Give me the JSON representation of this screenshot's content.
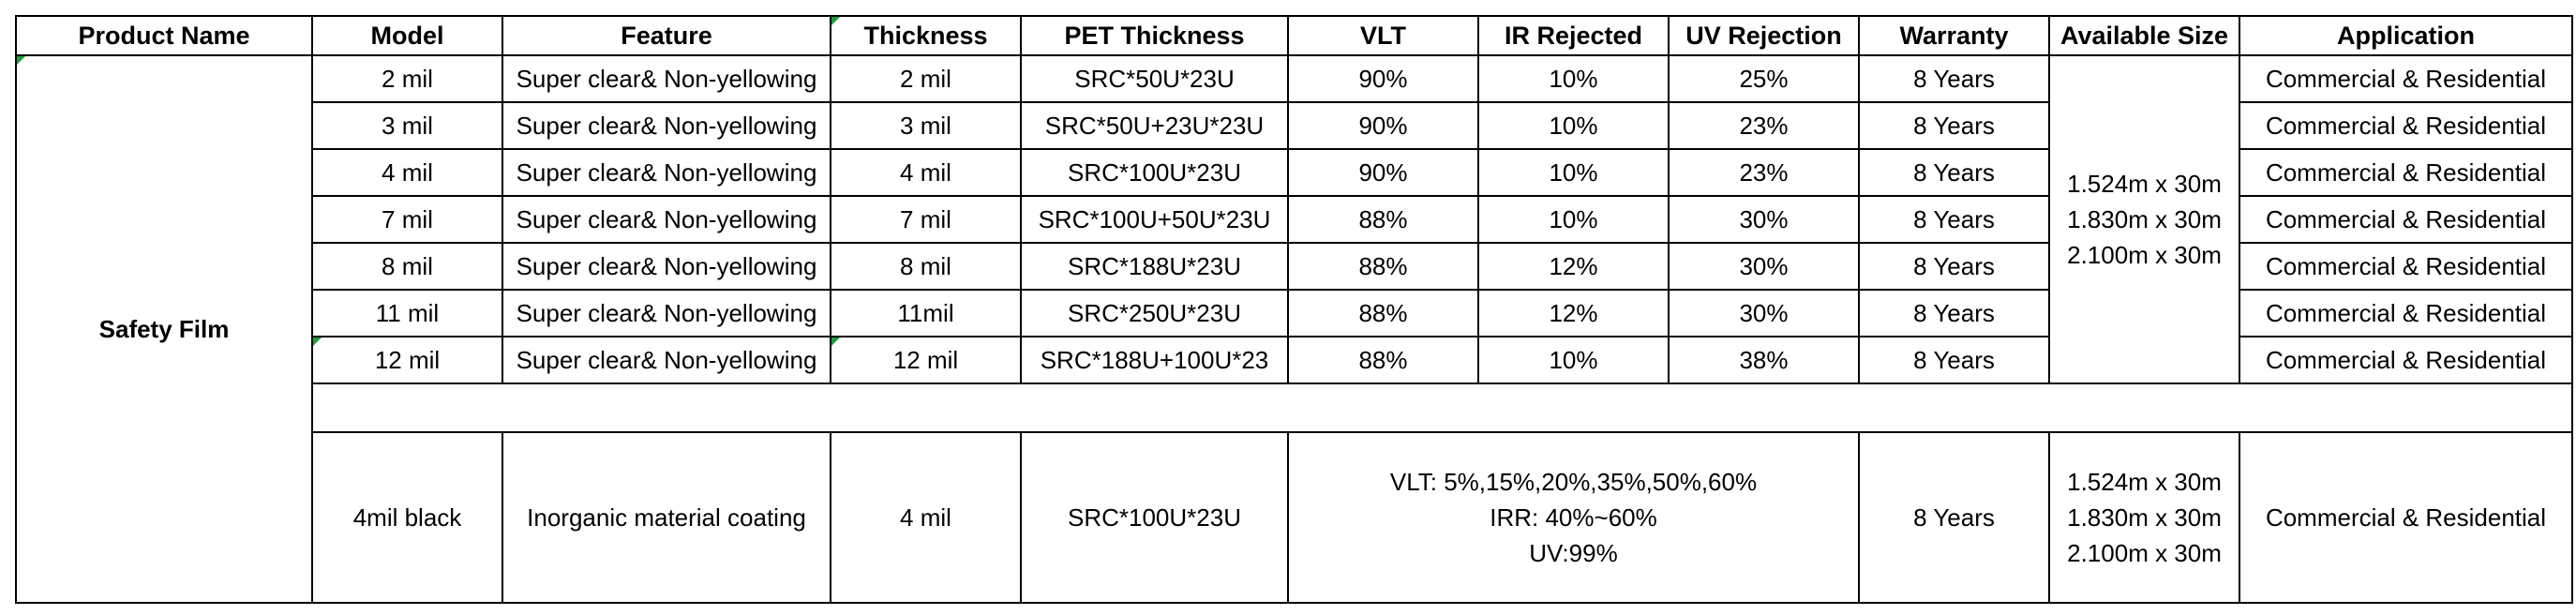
{
  "headers": [
    "Product Name",
    "Model",
    "Feature",
    "Thickness",
    "PET Thickness",
    "VLT",
    "IR Rejected",
    "UV Rejection",
    "Warranty",
    "Available Size",
    "Application"
  ],
  "product_name": "Safety Film",
  "rows": [
    {
      "model": "2 mil",
      "feature": "Super clear& Non-yellowing",
      "thickness": "2 mil",
      "pet": "SRC*50U*23U",
      "vlt": "90%",
      "ir": "10%",
      "uv": "25%",
      "warranty": "8 Years",
      "application": "Commercial & Residential"
    },
    {
      "model": "3 mil",
      "feature": "Super clear& Non-yellowing",
      "thickness": "3 mil",
      "pet": "SRC*50U+23U*23U",
      "vlt": "90%",
      "ir": "10%",
      "uv": "23%",
      "warranty": "8 Years",
      "application": "Commercial & Residential"
    },
    {
      "model": "4 mil",
      "feature": "Super clear& Non-yellowing",
      "thickness": "4 mil",
      "pet": "SRC*100U*23U",
      "vlt": "90%",
      "ir": "10%",
      "uv": "23%",
      "warranty": "8 Years",
      "application": "Commercial & Residential"
    },
    {
      "model": "7 mil",
      "feature": "Super clear& Non-yellowing",
      "thickness": "7 mil",
      "pet": "SRC*100U+50U*23U",
      "vlt": "88%",
      "ir": "10%",
      "uv": "30%",
      "warranty": "8 Years",
      "application": "Commercial & Residential"
    },
    {
      "model": "8 mil",
      "feature": "Super clear& Non-yellowing",
      "thickness": "8 mil",
      "pet": "SRC*188U*23U",
      "vlt": "88%",
      "ir": "12%",
      "uv": "30%",
      "warranty": "8 Years",
      "application": "Commercial & Residential"
    },
    {
      "model": "11 mil",
      "feature": "Super clear& Non-yellowing",
      "thickness": "11mil",
      "pet": "SRC*250U*23U",
      "vlt": "88%",
      "ir": "12%",
      "uv": "30%",
      "warranty": "8 Years",
      "application": "Commercial & Residential"
    },
    {
      "model": "12 mil",
      "feature": "Super clear& Non-yellowing",
      "thickness": "12 mil",
      "pet": "SRC*188U+100U*23",
      "vlt": "88%",
      "ir": "10%",
      "uv": "38%",
      "warranty": "8 Years",
      "application": "Commercial & Residential"
    }
  ],
  "available_sizes": [
    "1.524m x 30m",
    "1.830m x 30m",
    "2.100m x 30m"
  ],
  "black_row": {
    "model": "4mil black",
    "feature": "Inorganic material coating",
    "thickness": "4 mil",
    "pet": "SRC*100U*23U",
    "notes": [
      "VLT: 5%,15%,20%,35%,50%,60%",
      "IRR: 40%~60%",
      "UV:99%"
    ],
    "warranty": "8 Years",
    "sizes": [
      "1.524m x 30m",
      "1.830m x 30m",
      "2.100m x 30m"
    ],
    "application": "Commercial & Residential"
  },
  "colors": {
    "grid": "#000000",
    "marker": "#1f9d3a"
  }
}
